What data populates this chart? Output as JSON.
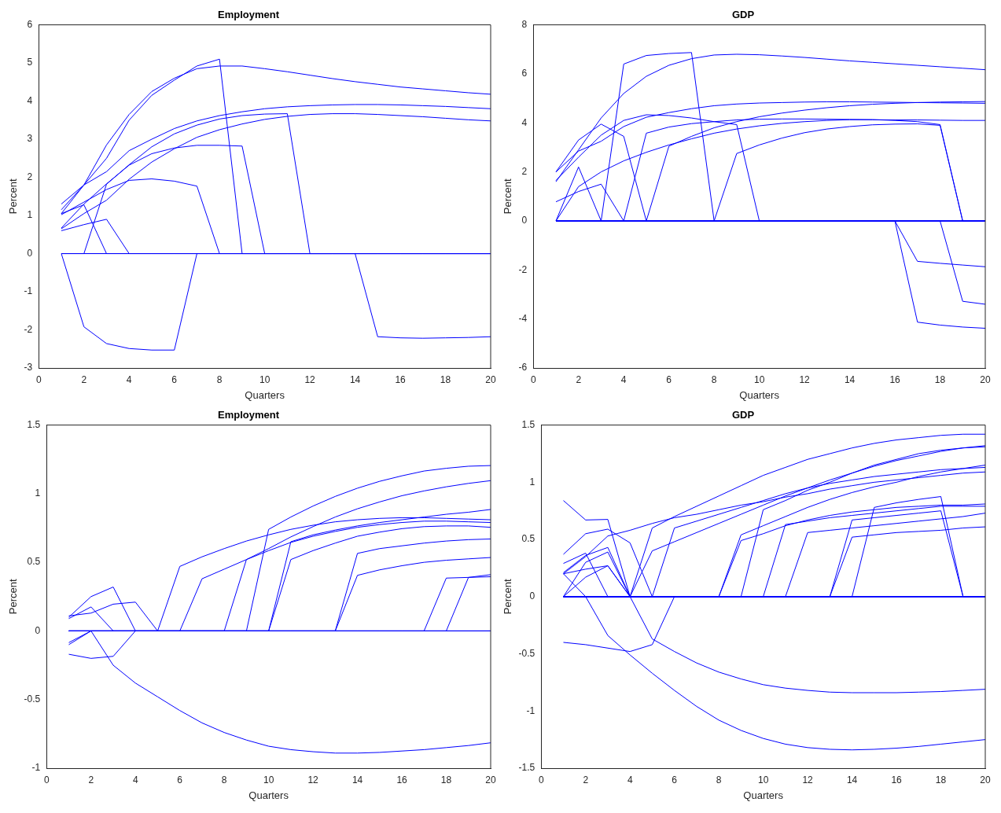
{
  "chart_data": [
    {
      "type": "line",
      "title": "Employment",
      "xlabel": "Quarters",
      "ylabel": "Percent",
      "x": [
        1,
        2,
        3,
        4,
        5,
        6,
        7,
        8,
        9,
        10,
        11,
        12,
        13,
        14,
        15,
        16,
        17,
        18,
        19,
        20
      ],
      "xlim": [
        0,
        20
      ],
      "xticks": [
        0,
        2,
        4,
        6,
        8,
        10,
        12,
        14,
        16,
        18,
        20
      ],
      "ylim": [
        -3,
        6
      ],
      "yticks": [
        -3,
        -2,
        -1,
        0,
        1,
        2,
        3,
        4,
        5,
        6
      ],
      "grid": false,
      "legend": false,
      "series": [
        {
          "color": "#0000ff",
          "values": [
            1.15,
            1.8,
            2.85,
            3.65,
            4.25,
            4.6,
            4.85,
            4.92,
            4.92,
            4.85,
            4.77,
            4.68,
            4.59,
            4.51,
            4.44,
            4.37,
            4.32,
            4.27,
            4.22,
            4.18
          ]
        },
        {
          "color": "#0000ff",
          "values": [
            1.05,
            1.8,
            2.5,
            3.5,
            4.15,
            4.55,
            4.92,
            5.1,
            0,
            0,
            0,
            0,
            0,
            0,
            0,
            0,
            0,
            0,
            0,
            0
          ]
        },
        {
          "color": "#0000ff",
          "values": [
            1.3,
            1.8,
            2.15,
            2.7,
            3.0,
            3.28,
            3.48,
            3.62,
            3.72,
            3.8,
            3.85,
            3.88,
            3.9,
            3.91,
            3.91,
            3.9,
            3.88,
            3.86,
            3.83,
            3.8
          ]
        },
        {
          "color": "#0000ff",
          "values": [
            0,
            0,
            1.82,
            2.33,
            2.8,
            3.14,
            3.37,
            3.53,
            3.62,
            3.66,
            3.67,
            0,
            0,
            0,
            0,
            0,
            0,
            0,
            0,
            0
          ]
        },
        {
          "color": "#0000ff",
          "values": [
            0.65,
            1.05,
            1.4,
            1.95,
            2.4,
            2.75,
            3.05,
            3.25,
            3.4,
            3.52,
            3.6,
            3.65,
            3.67,
            3.67,
            3.65,
            3.62,
            3.59,
            3.55,
            3.51,
            3.48
          ]
        },
        {
          "color": "#0000ff",
          "values": [
            0.67,
            1.3,
            1.83,
            2.32,
            2.62,
            2.77,
            2.84,
            2.84,
            2.82,
            0,
            0,
            0,
            0,
            0,
            0,
            0,
            0,
            0,
            0,
            0
          ]
        },
        {
          "color": "#0000ff",
          "values": [
            1.02,
            1.35,
            1.68,
            1.92,
            1.96,
            1.9,
            1.77,
            0,
            0,
            0,
            0,
            0,
            0,
            0,
            0,
            0,
            0,
            0,
            0,
            0
          ]
        },
        {
          "color": "#0000ff",
          "values": [
            0.6,
            0.76,
            0.9,
            0,
            0,
            0,
            0,
            0,
            0,
            0,
            0,
            0,
            0,
            0,
            0,
            0,
            0,
            0,
            0,
            0
          ]
        },
        {
          "color": "#0000ff",
          "values": [
            1.05,
            1.28,
            0,
            0,
            0,
            0,
            0,
            0,
            0,
            0,
            0,
            0,
            0,
            0,
            0,
            0,
            0,
            0,
            0,
            0
          ]
        },
        {
          "color": "#0000ff",
          "values": [
            0,
            -1.92,
            -2.36,
            -2.49,
            -2.53,
            -2.53,
            0,
            0,
            0,
            0,
            0,
            0,
            0,
            0,
            0,
            0,
            0,
            0,
            0,
            0
          ]
        },
        {
          "color": "#0000ff",
          "values": [
            0,
            0,
            0,
            0,
            0,
            0,
            0,
            0,
            0,
            0,
            0,
            0,
            0,
            0,
            -2.18,
            -2.21,
            -2.22,
            -2.21,
            -2.2,
            -2.18
          ]
        },
        {
          "color": "#0000ff",
          "values": [
            0,
            0,
            0,
            0,
            0,
            0,
            0,
            0,
            0,
            0,
            0,
            0,
            0,
            0,
            0,
            0,
            0,
            0,
            0,
            0
          ]
        }
      ]
    },
    {
      "type": "line",
      "title": "GDP",
      "xlabel": "Quarters",
      "ylabel": "Percent",
      "x": [
        1,
        2,
        3,
        4,
        5,
        6,
        7,
        8,
        9,
        10,
        11,
        12,
        13,
        14,
        15,
        16,
        17,
        18,
        19,
        20
      ],
      "xlim": [
        0,
        20
      ],
      "xticks": [
        0,
        2,
        4,
        6,
        8,
        10,
        12,
        14,
        16,
        18,
        20
      ],
      "ylim": [
        -6,
        8
      ],
      "yticks": [
        -6,
        -4,
        -2,
        0,
        2,
        4,
        6,
        8
      ],
      "grid": false,
      "legend": false,
      "series": [
        {
          "color": "#0000ff",
          "values": [
            1.6,
            2.9,
            4.2,
            5.2,
            5.9,
            6.35,
            6.62,
            6.77,
            6.8,
            6.78,
            6.73,
            6.67,
            6.6,
            6.53,
            6.47,
            6.41,
            6.35,
            6.29,
            6.23,
            6.17
          ]
        },
        {
          "color": "#0000ff",
          "values": [
            0,
            0,
            0,
            6.4,
            6.75,
            6.83,
            6.87,
            0,
            0,
            0,
            0,
            0,
            0,
            0,
            0,
            0,
            0,
            0,
            0,
            0
          ]
        },
        {
          "color": "#0000ff",
          "values": [
            2.0,
            3.3,
            3.95,
            3.45,
            0,
            0,
            0,
            0,
            0,
            0,
            0,
            0,
            0,
            0,
            0,
            0,
            0,
            0,
            0,
            0
          ]
        },
        {
          "color": "#0000ff",
          "values": [
            2.0,
            2.85,
            3.25,
            3.85,
            4.23,
            4.42,
            4.58,
            4.7,
            4.77,
            4.81,
            4.83,
            4.85,
            4.86,
            4.86,
            4.85,
            4.84,
            4.83,
            4.82,
            4.81,
            4.8
          ]
        },
        {
          "color": "#0000ff",
          "values": [
            1.65,
            2.6,
            3.5,
            4.1,
            4.33,
            4.3,
            4.2,
            4.05,
            3.93,
            0,
            0,
            0,
            0,
            0,
            0,
            0,
            0,
            0,
            0,
            0
          ]
        },
        {
          "color": "#0000ff",
          "values": [
            0,
            0,
            0,
            0,
            3.58,
            3.83,
            3.97,
            4.05,
            4.12,
            4.15,
            4.16,
            4.16,
            4.15,
            4.14,
            4.13,
            4.12,
            4.12,
            4.11,
            4.1,
            4.1
          ]
        },
        {
          "color": "#0000ff",
          "values": [
            0,
            0,
            0,
            0,
            0,
            3.05,
            3.45,
            3.8,
            4.05,
            4.25,
            4.4,
            4.52,
            4.62,
            4.7,
            4.76,
            4.8,
            4.83,
            4.85,
            4.86,
            4.87
          ]
        },
        {
          "color": "#0000ff",
          "values": [
            0,
            1.4,
            2.0,
            2.45,
            2.8,
            3.1,
            3.35,
            3.58,
            3.75,
            3.88,
            3.98,
            4.05,
            4.1,
            4.13,
            4.13,
            4.1,
            4.05,
            3.93,
            0,
            0
          ]
        },
        {
          "color": "#0000ff",
          "values": [
            0,
            0,
            0,
            0,
            0,
            0,
            0,
            0,
            2.75,
            3.1,
            3.38,
            3.6,
            3.75,
            3.85,
            3.92,
            3.95,
            3.96,
            3.9,
            0,
            0
          ]
        },
        {
          "color": "#0000ff",
          "values": [
            0,
            2.2,
            0,
            0,
            0,
            0,
            0,
            0,
            0,
            0,
            0,
            0,
            0,
            0,
            0,
            0,
            0,
            0,
            0,
            0
          ]
        },
        {
          "color": "#0000ff",
          "values": [
            0.78,
            1.2,
            1.5,
            0,
            0,
            0,
            0,
            0,
            0,
            0,
            0,
            0,
            0,
            0,
            0,
            0,
            0,
            0,
            0,
            0
          ]
        },
        {
          "color": "#0000ff",
          "values": [
            0,
            0,
            0,
            0,
            0,
            0,
            0,
            0,
            0,
            0,
            0,
            0,
            0,
            0,
            0,
            0,
            -1.65,
            -1.73,
            -1.8,
            -1.87
          ]
        },
        {
          "color": "#0000ff",
          "values": [
            0,
            0,
            0,
            0,
            0,
            0,
            0,
            0,
            0,
            0,
            0,
            0,
            0,
            0,
            0,
            0,
            -4.13,
            -4.25,
            -4.33,
            -4.38
          ]
        },
        {
          "color": "#0000ff",
          "values": [
            0,
            0,
            0,
            0,
            0,
            0,
            0,
            0,
            0,
            0,
            0,
            0,
            0,
            0,
            0,
            0,
            0,
            0,
            -3.28,
            -3.4
          ]
        }
      ]
    },
    {
      "type": "line",
      "title": "Employment",
      "xlabel": "Quarters",
      "ylabel": "Percent",
      "x": [
        1,
        2,
        3,
        4,
        5,
        6,
        7,
        8,
        9,
        10,
        11,
        12,
        13,
        14,
        15,
        16,
        17,
        18,
        19,
        20
      ],
      "xlim": [
        0,
        20
      ],
      "xticks": [
        0,
        2,
        4,
        6,
        8,
        10,
        12,
        14,
        16,
        18,
        20
      ],
      "ylim": [
        -1,
        1.5
      ],
      "yticks": [
        -1,
        -0.5,
        0,
        0.5,
        1,
        1.5
      ],
      "grid": false,
      "legend": false,
      "series": [
        {
          "color": "#0000ff",
          "values": [
            0.1,
            0.25,
            0.32,
            0,
            0,
            0,
            0,
            0,
            0,
            0,
            0,
            0,
            0,
            0,
            0,
            0,
            0,
            0,
            0,
            0
          ]
        },
        {
          "color": "#0000ff",
          "values": [
            0.11,
            0.13,
            0.195,
            0.21,
            0,
            0.47,
            0.54,
            0.6,
            0.655,
            0.7,
            0.74,
            0.77,
            0.795,
            0.81,
            0.82,
            0.825,
            0.825,
            0.82,
            0.815,
            0.81
          ]
        },
        {
          "color": "#0000ff",
          "values": [
            0.09,
            0.175,
            0,
            0,
            0,
            0,
            0.38,
            0.45,
            0.52,
            0.585,
            0.645,
            0.69,
            0.725,
            0.755,
            0.775,
            0.79,
            0.8,
            0.8,
            0.795,
            0.79
          ]
        },
        {
          "color": "#0000ff",
          "values": [
            0,
            0,
            0,
            0,
            0,
            0,
            0,
            0,
            0.52,
            0.6,
            0.685,
            0.76,
            0.83,
            0.89,
            0.94,
            0.985,
            1.02,
            1.05,
            1.075,
            1.095
          ]
        },
        {
          "color": "#0000ff",
          "values": [
            0,
            0,
            0,
            0,
            0,
            0,
            0,
            0,
            0,
            0.74,
            0.83,
            0.91,
            0.98,
            1.04,
            1.09,
            1.13,
            1.165,
            1.185,
            1.2,
            1.205
          ]
        },
        {
          "color": "#0000ff",
          "values": [
            0,
            0,
            0,
            0,
            0,
            0,
            0,
            0,
            0,
            0,
            0.65,
            0.7,
            0.735,
            0.765,
            0.79,
            0.81,
            0.83,
            0.85,
            0.865,
            0.885
          ]
        },
        {
          "color": "#0000ff",
          "values": [
            0,
            0,
            0,
            0,
            0,
            0,
            0,
            0,
            0,
            0,
            0.52,
            0.585,
            0.64,
            0.69,
            0.72,
            0.745,
            0.76,
            0.765,
            0.765,
            0.755
          ]
        },
        {
          "color": "#0000ff",
          "values": [
            0,
            0,
            0,
            0,
            0,
            0,
            0,
            0,
            0,
            0,
            0,
            0,
            0,
            0.565,
            0.6,
            0.62,
            0.64,
            0.655,
            0.665,
            0.67
          ]
        },
        {
          "color": "#0000ff",
          "values": [
            0,
            0,
            0,
            0,
            0,
            0,
            0,
            0,
            0,
            0,
            0,
            0,
            0,
            0.405,
            0.445,
            0.475,
            0.5,
            0.515,
            0.525,
            0.535
          ]
        },
        {
          "color": "#0000ff",
          "values": [
            0,
            0,
            0,
            0,
            0,
            0,
            0,
            0,
            0,
            0,
            0,
            0,
            0,
            0,
            0,
            0,
            0,
            0.385,
            0.39,
            0.395
          ]
        },
        {
          "color": "#0000ff",
          "values": [
            0,
            0,
            0,
            0,
            0,
            0,
            0,
            0,
            0,
            0,
            0,
            0,
            0,
            0,
            0,
            0,
            0,
            0,
            0.39,
            0.41
          ]
        },
        {
          "color": "#0000ff",
          "values": [
            -0.17,
            -0.2,
            -0.185,
            0,
            0,
            0,
            0,
            0,
            0,
            0,
            0,
            0,
            0,
            0,
            0,
            0,
            0,
            0,
            0,
            0
          ]
        },
        {
          "color": "#0000ff",
          "values": [
            -0.085,
            0,
            -0.25,
            -0.38,
            -0.48,
            -0.58,
            -0.67,
            -0.74,
            -0.795,
            -0.84,
            -0.865,
            -0.88,
            -0.89,
            -0.89,
            -0.885,
            -0.875,
            -0.865,
            -0.85,
            -0.835,
            -0.815
          ]
        },
        {
          "color": "#0000ff",
          "values": [
            -0.1,
            0,
            0,
            0,
            0,
            0,
            0,
            0,
            0,
            0,
            0,
            0,
            0,
            0,
            0,
            0,
            0,
            0,
            0,
            0
          ]
        },
        {
          "color": "#0000ff",
          "values": [
            0,
            0,
            0,
            0,
            0,
            0,
            0,
            0,
            0,
            0,
            0,
            0,
            0,
            0,
            0,
            0,
            0,
            0,
            0,
            0
          ]
        }
      ]
    },
    {
      "type": "line",
      "title": "GDP",
      "xlabel": "Quarters",
      "ylabel": "Percent",
      "x": [
        1,
        2,
        3,
        4,
        5,
        6,
        7,
        8,
        9,
        10,
        11,
        12,
        13,
        14,
        15,
        16,
        17,
        18,
        19,
        20
      ],
      "xlim": [
        0,
        20
      ],
      "xticks": [
        0,
        2,
        4,
        6,
        8,
        10,
        12,
        14,
        16,
        18,
        20
      ],
      "ylim": [
        -1.5,
        1.5
      ],
      "yticks": [
        -1.5,
        -1,
        -0.5,
        0,
        0.5,
        1,
        1.5
      ],
      "grid": false,
      "legend": false,
      "series": [
        {
          "color": "#0000ff",
          "values": [
            0.84,
            0.67,
            0.675,
            0,
            0.6,
            0.7,
            0.79,
            0.88,
            0.97,
            1.06,
            1.13,
            1.2,
            1.25,
            1.3,
            1.34,
            1.37,
            1.39,
            1.41,
            1.42,
            1.42
          ]
        },
        {
          "color": "#0000ff",
          "values": [
            0.37,
            0.55,
            0.59,
            0.47,
            0,
            0.6,
            0.66,
            0.72,
            0.78,
            0.84,
            0.9,
            0.95,
            0.99,
            1.02,
            1.05,
            1.07,
            1.09,
            1.11,
            1.12,
            1.13
          ]
        },
        {
          "color": "#0000ff",
          "values": [
            0.29,
            0.38,
            0,
            0,
            0,
            0,
            0,
            0,
            0,
            0,
            0,
            0,
            0,
            0,
            0,
            0,
            0,
            0,
            0,
            0
          ]
        },
        {
          "color": "#0000ff",
          "values": [
            0.21,
            0.36,
            0.43,
            0,
            0.4,
            0.48,
            0.56,
            0.64,
            0.72,
            0.8,
            0.88,
            0.95,
            1.02,
            1.08,
            1.14,
            1.19,
            1.23,
            1.27,
            1.3,
            1.32
          ]
        },
        {
          "color": "#0000ff",
          "values": [
            0.2,
            0.24,
            0.27,
            0,
            0,
            0,
            0,
            0,
            0,
            0,
            0,
            0,
            0,
            0,
            0,
            0,
            0,
            0,
            0,
            0
          ]
        },
        {
          "color": "#0000ff",
          "values": [
            0,
            0.3,
            0.39,
            0,
            0,
            0,
            0,
            0,
            0,
            0,
            0,
            0,
            0,
            0,
            0,
            0,
            0,
            0,
            0,
            0
          ]
        },
        {
          "color": "#0000ff",
          "values": [
            0,
            0.17,
            0.27,
            0,
            0,
            0,
            0,
            0,
            0,
            0,
            0,
            0,
            0,
            0,
            0,
            0,
            0,
            0,
            0,
            0
          ]
        },
        {
          "color": "#0000ff",
          "values": [
            0.2,
            0,
            -0.34,
            -0.51,
            -0.67,
            -0.82,
            -0.96,
            -1.08,
            -1.17,
            -1.24,
            -1.29,
            -1.32,
            -1.335,
            -1.34,
            -1.335,
            -1.325,
            -1.31,
            -1.29,
            -1.27,
            -1.25
          ]
        },
        {
          "color": "#0000ff",
          "values": [
            -0.4,
            -0.42,
            -0.45,
            -0.48,
            -0.42,
            0,
            0,
            0,
            0,
            0,
            0,
            0,
            0,
            0,
            0,
            0,
            0,
            0,
            0,
            0
          ]
        },
        {
          "color": "#0000ff",
          "values": [
            0.2,
            0.35,
            0.53,
            0.58,
            0.64,
            0.69,
            0.72,
            0.76,
            0.8,
            0.83,
            0.87,
            0.9,
            0.94,
            0.97,
            1.0,
            1.02,
            1.04,
            1.06,
            1.08,
            1.09
          ]
        },
        {
          "color": "#0000ff",
          "values": [
            0,
            0,
            0,
            0,
            -0.37,
            -0.48,
            -0.58,
            -0.66,
            -0.72,
            -0.77,
            -0.8,
            -0.82,
            -0.835,
            -0.84,
            -0.84,
            -0.84,
            -0.835,
            -0.83,
            -0.82,
            -0.81
          ]
        },
        {
          "color": "#0000ff",
          "values": [
            0,
            0,
            0,
            0,
            0,
            0,
            0,
            0,
            0.54,
            0.62,
            0.7,
            0.78,
            0.85,
            0.91,
            0.96,
            1.0,
            1.05,
            1.09,
            1.12,
            1.15
          ]
        },
        {
          "color": "#0000ff",
          "values": [
            0,
            0,
            0,
            0,
            0,
            0,
            0,
            0,
            0,
            0.76,
            0.84,
            0.93,
            1.0,
            1.08,
            1.15,
            1.2,
            1.25,
            1.28,
            1.3,
            1.31
          ]
        },
        {
          "color": "#0000ff",
          "values": [
            0,
            0,
            0,
            0,
            0,
            0,
            0,
            0,
            0.49,
            0.55,
            0.62,
            0.67,
            0.71,
            0.74,
            0.76,
            0.78,
            0.79,
            0.8,
            0.8,
            0.81
          ]
        },
        {
          "color": "#0000ff",
          "values": [
            0,
            0,
            0,
            0,
            0,
            0,
            0,
            0,
            0,
            0,
            0.63,
            0.66,
            0.69,
            0.71,
            0.73,
            0.75,
            0.77,
            0.79,
            0.79,
            0.79
          ]
        },
        {
          "color": "#0000ff",
          "values": [
            0,
            0,
            0,
            0,
            0,
            0,
            0,
            0,
            0,
            0,
            0,
            0.56,
            0.58,
            0.6,
            0.62,
            0.64,
            0.66,
            0.68,
            0.7,
            0.73
          ]
        },
        {
          "color": "#0000ff",
          "values": [
            0,
            0,
            0,
            0,
            0,
            0,
            0,
            0,
            0,
            0,
            0,
            0,
            0,
            0.52,
            0.54,
            0.56,
            0.57,
            0.58,
            0.6,
            0.61
          ]
        },
        {
          "color": "#0000ff",
          "values": [
            0,
            0,
            0,
            0,
            0,
            0,
            0,
            0,
            0,
            0,
            0,
            0,
            0,
            0.67,
            0.69,
            0.71,
            0.73,
            0.75,
            0,
            0
          ]
        },
        {
          "color": "#0000ff",
          "values": [
            0,
            0,
            0,
            0,
            0,
            0,
            0,
            0,
            0,
            0,
            0,
            0,
            0,
            0,
            0.78,
            0.82,
            0.85,
            0.875,
            0,
            0
          ]
        },
        {
          "color": "#0000ff",
          "values": [
            0,
            0,
            0,
            0,
            0,
            0,
            0,
            0,
            0,
            0,
            0,
            0,
            0,
            0,
            0,
            0,
            0,
            0,
            0,
            0
          ]
        }
      ]
    }
  ]
}
